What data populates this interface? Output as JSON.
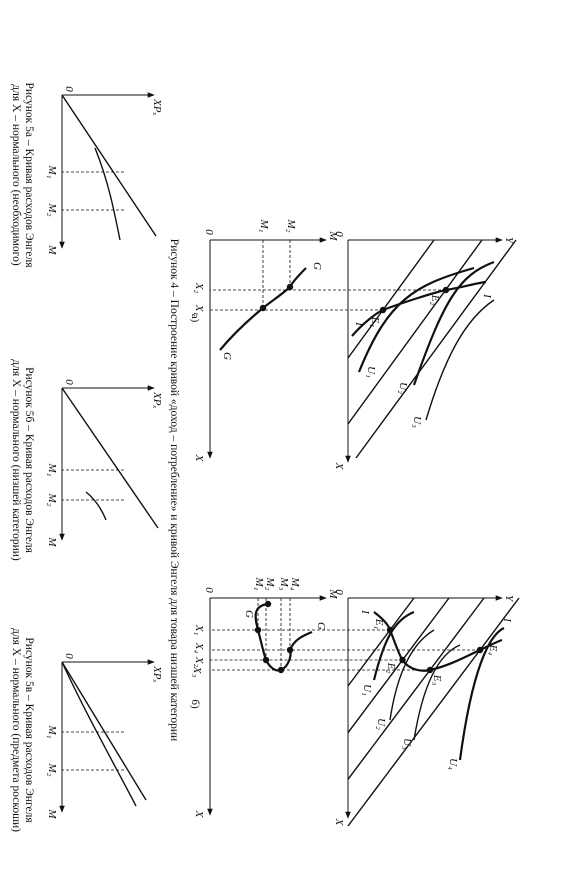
{
  "figure4": {
    "caption": "Рисунок 4 – Построение кривой «доход – потребление» и кривой Энгеля для товара низшей категории",
    "panels": [
      {
        "label": "а)",
        "top_labels": [
          "Y",
          "0",
          "X",
          "I",
          "I",
          "E₂",
          "E₁",
          "U₁",
          "U₂",
          "U₃"
        ],
        "bottom_labels": [
          "M",
          "0",
          "M₂",
          "M₁",
          "G",
          "G",
          "X₂",
          "X₁",
          "X"
        ]
      },
      {
        "label": "б)",
        "top_labels": [
          "Y",
          "0",
          "X",
          "I",
          "I",
          "E₄",
          "E₃",
          "E₂",
          "E₁",
          "U₁",
          "U₂",
          "U₃",
          "U₄"
        ],
        "bottom_labels": [
          "M",
          "0",
          "M₄",
          "M₃",
          "M₂",
          "M₁",
          "G",
          "G",
          "X₁",
          "X₄",
          "X₂",
          "X₃",
          "X"
        ]
      }
    ]
  },
  "figure5": [
    {
      "caption_lines": [
        "Рисунок 5а – Кривая расходов Энгеля",
        "для X – нормального (необходимого)"
      ],
      "labels": [
        "XPₓ",
        "0",
        "M₁",
        "M₂",
        "M"
      ]
    },
    {
      "caption_lines": [
        "Рисунок 5б – Кривая расходов Энгеля",
        "для X – нормального (низшей категории)"
      ],
      "labels": [
        "XPₓ",
        "0",
        "M₁",
        "M₂",
        "M"
      ]
    },
    {
      "caption_lines": [
        "Рисунок 5в – Кривая расходов Энгеля",
        "для X – нормального (предмета роскоши)"
      ],
      "labels": [
        "XPₓ",
        "0",
        "M₁",
        "M₂",
        "M"
      ]
    }
  ]
}
